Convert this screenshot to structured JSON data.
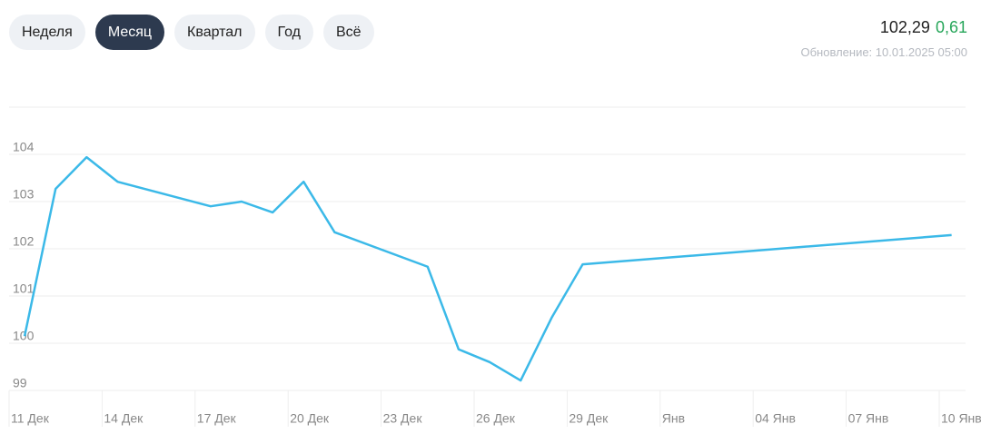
{
  "tabs": [
    "Неделя",
    "Месяц",
    "Квартал",
    "Год",
    "Всё"
  ],
  "active_tab": 1,
  "price": "102,29",
  "change": "0,61",
  "updated": "Обновление: 10.01.2025 05:00",
  "chart_data": {
    "type": "line",
    "x": [
      0.5,
      1.5,
      2.5,
      3.5,
      6.5,
      7.5,
      8.5,
      9.5,
      10.5,
      13.5,
      14.5,
      15.5,
      16.5,
      17.5,
      18.5,
      30.4
    ],
    "values": [
      100.15,
      103.27,
      103.94,
      103.42,
      102.9,
      103.0,
      102.77,
      103.42,
      102.35,
      101.62,
      99.87,
      99.6,
      99.21,
      100.54,
      101.67,
      102.29
    ],
    "color": "#3bb9e8",
    "xlim": [
      0,
      30.85
    ],
    "xticks": [
      {
        "value": 0,
        "label": "11 Дек"
      },
      {
        "value": 3,
        "label": "14 Дек"
      },
      {
        "value": 6,
        "label": "17 Дек"
      },
      {
        "value": 9,
        "label": "20 Дек"
      },
      {
        "value": 12,
        "label": "23 Дек"
      },
      {
        "value": 15,
        "label": "26 Дек"
      },
      {
        "value": 18,
        "label": "29 Дек"
      },
      {
        "value": 21,
        "label": "Янв"
      },
      {
        "value": 24,
        "label": "04 Янв"
      },
      {
        "value": 27,
        "label": "07 Янв"
      },
      {
        "value": 30,
        "label": "10 Янв"
      }
    ],
    "ylim": [
      99,
      105
    ],
    "yticks": [
      99,
      100,
      101,
      102,
      103,
      104
    ],
    "grid": true
  }
}
